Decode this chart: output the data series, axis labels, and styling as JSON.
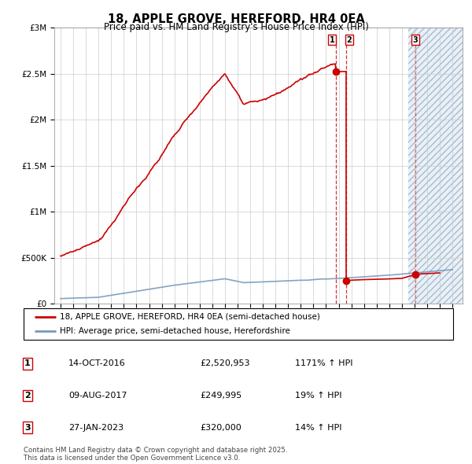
{
  "title": "18, APPLE GROVE, HEREFORD, HR4 0EA",
  "subtitle": "Price paid vs. HM Land Registry's House Price Index (HPI)",
  "legend_line1": "18, APPLE GROVE, HEREFORD, HR4 0EA (semi-detached house)",
  "legend_line2": "HPI: Average price, semi-detached house, Herefordshire",
  "red_color": "#cc0000",
  "blue_color": "#7799bb",
  "light_blue_bg": "#e8f0f8",
  "background_color": "#ffffff",
  "grid_color": "#cccccc",
  "transaction1_price": 2520953,
  "transaction1_display": "14-OCT-2016",
  "transaction1_price_display": "£2,520,953",
  "transaction1_pct": "1171% ↑ HPI",
  "transaction2_price": 249995,
  "transaction2_display": "09-AUG-2017",
  "transaction2_price_display": "£249,995",
  "transaction2_pct": "19% ↑ HPI",
  "transaction3_price": 320000,
  "transaction3_display": "27-JAN-2023",
  "transaction3_price_display": "£320,000",
  "transaction3_pct": "14% ↑ HPI",
  "footnote": "Contains HM Land Registry data © Crown copyright and database right 2025.\nThis data is licensed under the Open Government Licence v3.0.",
  "ylim_max": 3000000,
  "t1_year": 2016.79,
  "t2_year": 2017.6,
  "t3_year": 2023.08
}
